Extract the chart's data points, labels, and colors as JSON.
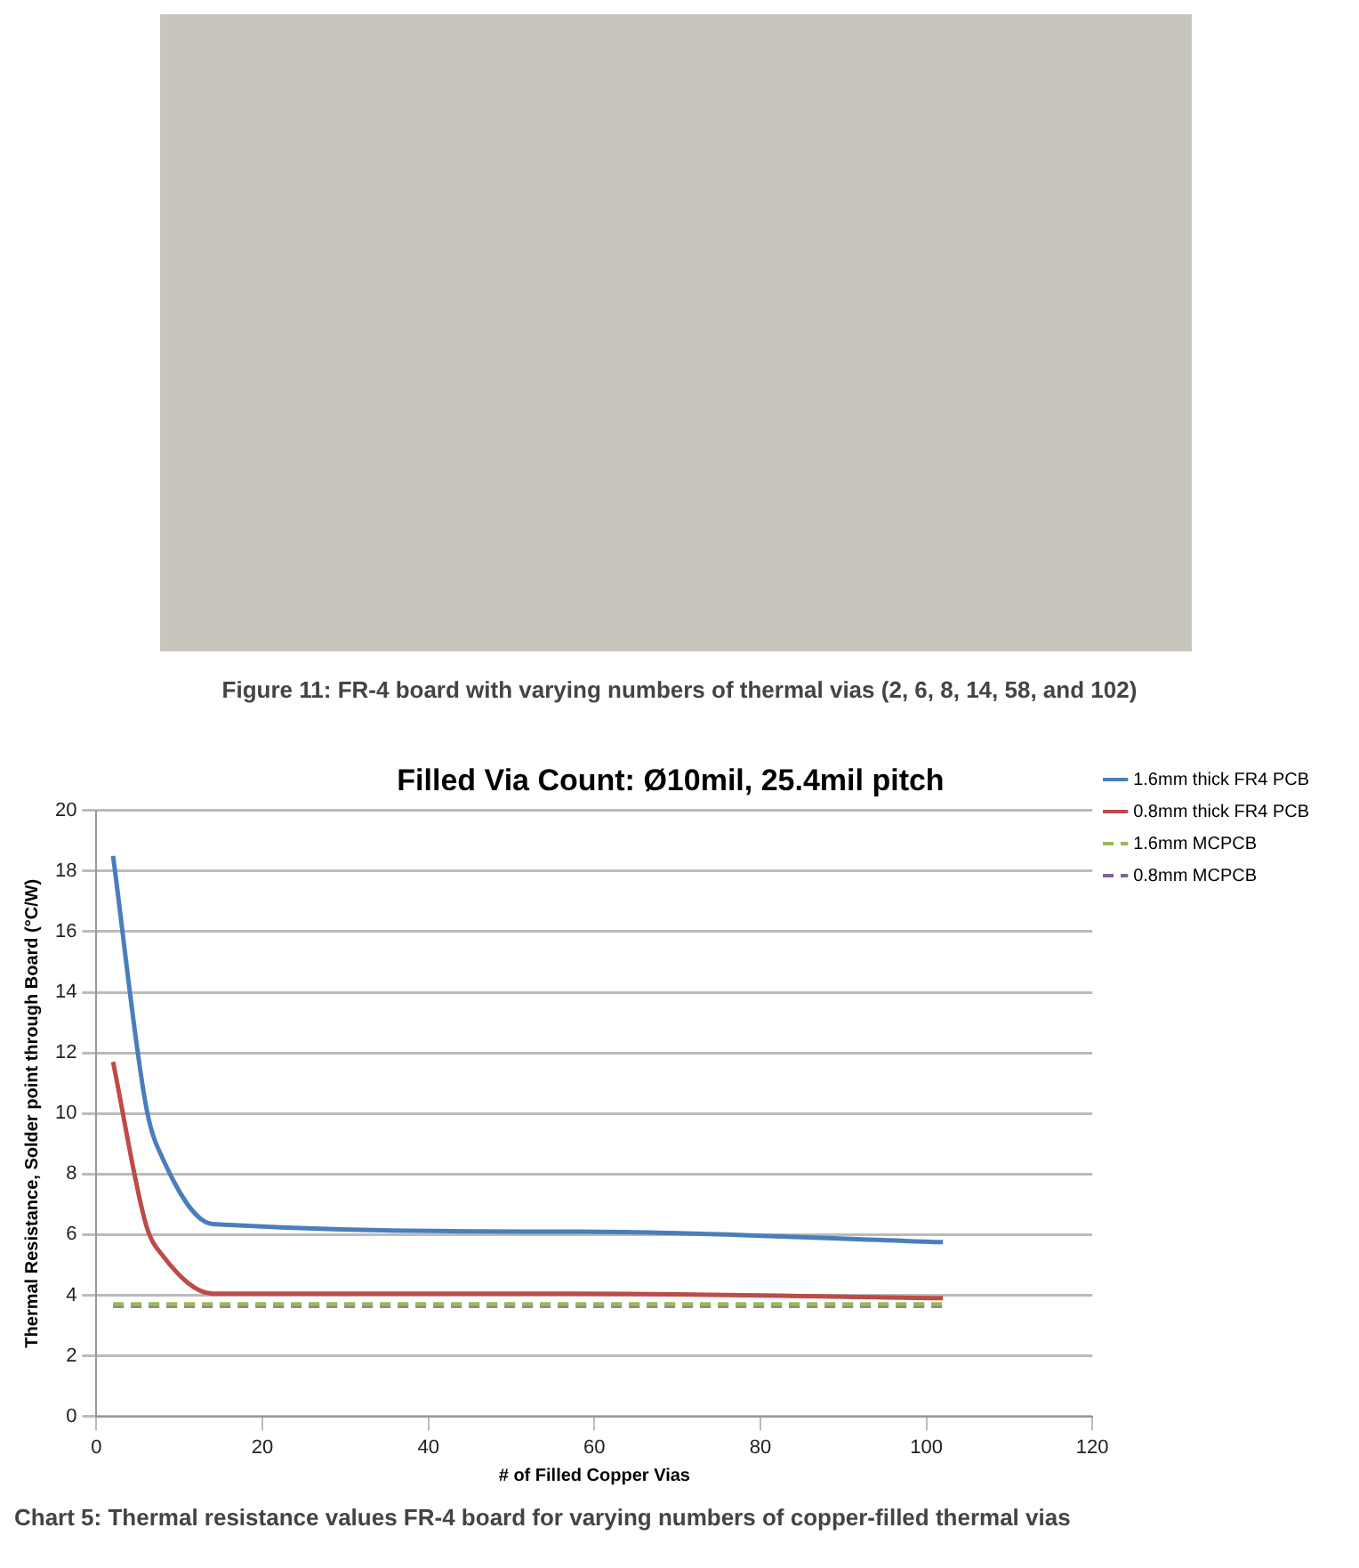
{
  "chart_data": {
    "type": "line",
    "title": "Filled Via Count: Ø10mil, 25.4mil pitch",
    "xlabel": "# of Filled Copper Vias",
    "ylabel": "Thermal Resistance, Solder point through Board (°C/W)",
    "annotations": [
      "Figure 11: FR-4 board with varying numbers of thermal vias (2, 6, 8, 14, 58, and 102)",
      "Chart 5: Thermal resistance values FR-4 board for varying numbers of copper-filled thermal vias"
    ],
    "x": [
      2,
      6,
      8,
      14,
      58,
      102
    ],
    "series": [
      {
        "name": "1.6mm thick FR4 PCB",
        "color": "#4a7ebb",
        "line_style": "solid",
        "values": [
          18.5,
          10.2,
          8.5,
          6.35,
          6.1,
          5.75
        ]
      },
      {
        "name": "0.8mm thick FR4 PCB",
        "color": "#be4b48",
        "line_style": "solid",
        "values": [
          11.7,
          6.3,
          5.3,
          4.05,
          4.05,
          3.9
        ]
      },
      {
        "name": "1.6mm MCPCB",
        "color": "#98b954",
        "line_style": "dashed",
        "values": [
          3.7,
          3.7,
          3.7,
          3.7,
          3.7,
          3.7
        ]
      },
      {
        "name": "0.8mm MCPCB",
        "color": "#7d60a0",
        "line_style": "dashed",
        "values": [
          3.65,
          3.65,
          3.65,
          3.65,
          3.65,
          3.65
        ]
      }
    ],
    "xlim": [
      0,
      120
    ],
    "xticks": [
      0,
      20,
      40,
      60,
      80,
      100,
      120
    ],
    "ylim": [
      0,
      20
    ],
    "yticks": [
      0,
      2,
      4,
      6,
      8,
      10,
      12,
      14,
      16,
      18,
      20
    ],
    "grid": "y",
    "legend": "right",
    "marker": "none"
  }
}
